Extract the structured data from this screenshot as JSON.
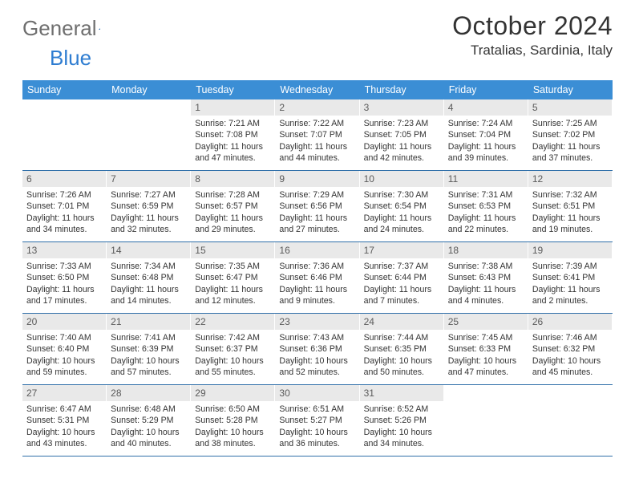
{
  "logo": {
    "word1": "General",
    "word2": "Blue"
  },
  "header": {
    "title": "October 2024",
    "location": "Tratalias, Sardinia, Italy"
  },
  "colors": {
    "header_bar": "#3b8ed5",
    "daynum_bg": "#e9e9e9",
    "rule": "#2f6fa9",
    "logo_gray": "#6f6f6f",
    "logo_blue": "#2f7dd1"
  },
  "days_of_week": [
    "Sunday",
    "Monday",
    "Tuesday",
    "Wednesday",
    "Thursday",
    "Friday",
    "Saturday"
  ],
  "leading_blanks": 2,
  "days": [
    {
      "n": "1",
      "sr": "7:21 AM",
      "ss": "7:08 PM",
      "dl": "11 hours and 47 minutes."
    },
    {
      "n": "2",
      "sr": "7:22 AM",
      "ss": "7:07 PM",
      "dl": "11 hours and 44 minutes."
    },
    {
      "n": "3",
      "sr": "7:23 AM",
      "ss": "7:05 PM",
      "dl": "11 hours and 42 minutes."
    },
    {
      "n": "4",
      "sr": "7:24 AM",
      "ss": "7:04 PM",
      "dl": "11 hours and 39 minutes."
    },
    {
      "n": "5",
      "sr": "7:25 AM",
      "ss": "7:02 PM",
      "dl": "11 hours and 37 minutes."
    },
    {
      "n": "6",
      "sr": "7:26 AM",
      "ss": "7:01 PM",
      "dl": "11 hours and 34 minutes."
    },
    {
      "n": "7",
      "sr": "7:27 AM",
      "ss": "6:59 PM",
      "dl": "11 hours and 32 minutes."
    },
    {
      "n": "8",
      "sr": "7:28 AM",
      "ss": "6:57 PM",
      "dl": "11 hours and 29 minutes."
    },
    {
      "n": "9",
      "sr": "7:29 AM",
      "ss": "6:56 PM",
      "dl": "11 hours and 27 minutes."
    },
    {
      "n": "10",
      "sr": "7:30 AM",
      "ss": "6:54 PM",
      "dl": "11 hours and 24 minutes."
    },
    {
      "n": "11",
      "sr": "7:31 AM",
      "ss": "6:53 PM",
      "dl": "11 hours and 22 minutes."
    },
    {
      "n": "12",
      "sr": "7:32 AM",
      "ss": "6:51 PM",
      "dl": "11 hours and 19 minutes."
    },
    {
      "n": "13",
      "sr": "7:33 AM",
      "ss": "6:50 PM",
      "dl": "11 hours and 17 minutes."
    },
    {
      "n": "14",
      "sr": "7:34 AM",
      "ss": "6:48 PM",
      "dl": "11 hours and 14 minutes."
    },
    {
      "n": "15",
      "sr": "7:35 AM",
      "ss": "6:47 PM",
      "dl": "11 hours and 12 minutes."
    },
    {
      "n": "16",
      "sr": "7:36 AM",
      "ss": "6:46 PM",
      "dl": "11 hours and 9 minutes."
    },
    {
      "n": "17",
      "sr": "7:37 AM",
      "ss": "6:44 PM",
      "dl": "11 hours and 7 minutes."
    },
    {
      "n": "18",
      "sr": "7:38 AM",
      "ss": "6:43 PM",
      "dl": "11 hours and 4 minutes."
    },
    {
      "n": "19",
      "sr": "7:39 AM",
      "ss": "6:41 PM",
      "dl": "11 hours and 2 minutes."
    },
    {
      "n": "20",
      "sr": "7:40 AM",
      "ss": "6:40 PM",
      "dl": "10 hours and 59 minutes."
    },
    {
      "n": "21",
      "sr": "7:41 AM",
      "ss": "6:39 PM",
      "dl": "10 hours and 57 minutes."
    },
    {
      "n": "22",
      "sr": "7:42 AM",
      "ss": "6:37 PM",
      "dl": "10 hours and 55 minutes."
    },
    {
      "n": "23",
      "sr": "7:43 AM",
      "ss": "6:36 PM",
      "dl": "10 hours and 52 minutes."
    },
    {
      "n": "24",
      "sr": "7:44 AM",
      "ss": "6:35 PM",
      "dl": "10 hours and 50 minutes."
    },
    {
      "n": "25",
      "sr": "7:45 AM",
      "ss": "6:33 PM",
      "dl": "10 hours and 47 minutes."
    },
    {
      "n": "26",
      "sr": "7:46 AM",
      "ss": "6:32 PM",
      "dl": "10 hours and 45 minutes."
    },
    {
      "n": "27",
      "sr": "6:47 AM",
      "ss": "5:31 PM",
      "dl": "10 hours and 43 minutes."
    },
    {
      "n": "28",
      "sr": "6:48 AM",
      "ss": "5:29 PM",
      "dl": "10 hours and 40 minutes."
    },
    {
      "n": "29",
      "sr": "6:50 AM",
      "ss": "5:28 PM",
      "dl": "10 hours and 38 minutes."
    },
    {
      "n": "30",
      "sr": "6:51 AM",
      "ss": "5:27 PM",
      "dl": "10 hours and 36 minutes."
    },
    {
      "n": "31",
      "sr": "6:52 AM",
      "ss": "5:26 PM",
      "dl": "10 hours and 34 minutes."
    }
  ],
  "labels": {
    "sunrise": "Sunrise:",
    "sunset": "Sunset:",
    "daylight": "Daylight:"
  }
}
